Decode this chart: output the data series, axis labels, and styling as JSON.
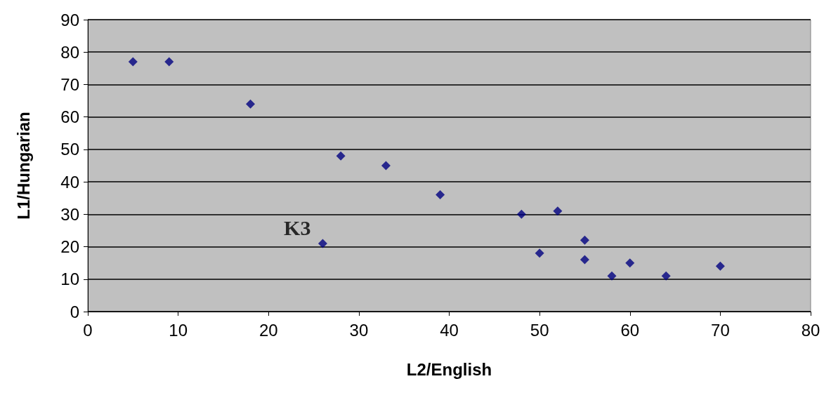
{
  "chart_data": {
    "type": "scatter",
    "xlabel": "L2/English",
    "ylabel": "L1/Hungarian",
    "x": [
      5,
      9,
      18,
      28,
      33,
      39,
      48,
      52,
      26,
      55,
      50,
      55,
      58,
      60,
      64,
      70
    ],
    "values": [
      77,
      77,
      64,
      48,
      45,
      36,
      30,
      31,
      21,
      22,
      18,
      16,
      11,
      15,
      11,
      14
    ],
    "color": "#000080",
    "marker": "diamond",
    "xlim": [
      0,
      80
    ],
    "xticks": [
      0,
      10,
      20,
      30,
      40,
      50,
      60,
      70,
      80
    ],
    "ylim": [
      0,
      90
    ],
    "yticks": [
      0,
      10,
      20,
      30,
      40,
      50,
      60,
      70,
      80,
      90
    ],
    "grid": "y",
    "annotations": [
      {
        "text": "K3",
        "x": 26,
        "y": 21
      }
    ]
  }
}
